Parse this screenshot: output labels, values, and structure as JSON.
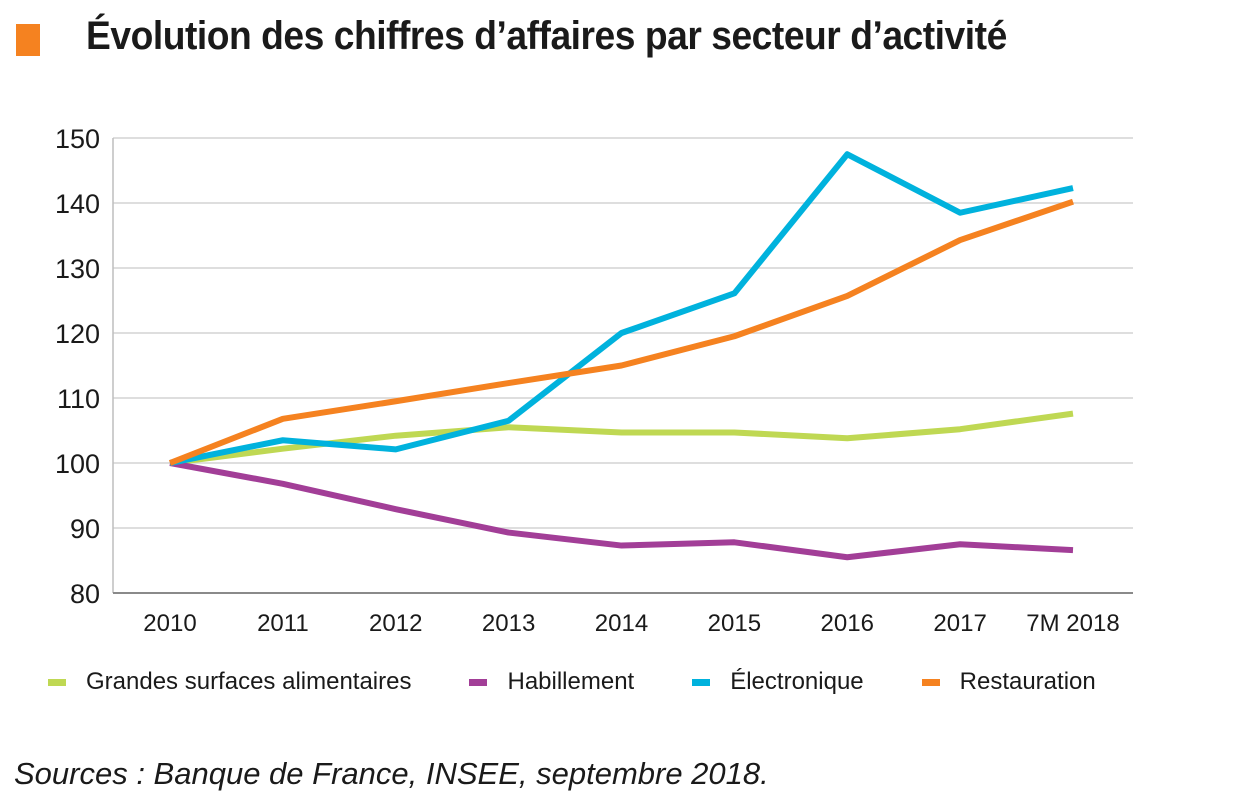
{
  "header": {
    "title": "Évolution des chiffres d’affaires par secteur d’activité",
    "marker_color": "#f58220"
  },
  "chart_data": {
    "type": "line",
    "title": "Évolution des chiffres d’affaires par secteur d’activité",
    "xlabel": "",
    "ylabel": "",
    "categories": [
      "2010",
      "2011",
      "2012",
      "2013",
      "2014",
      "2015",
      "2016",
      "2017",
      "7M 2018"
    ],
    "ylim": [
      80,
      150
    ],
    "yticks": [
      80,
      90,
      100,
      110,
      120,
      130,
      140,
      150
    ],
    "grid": true,
    "legend_position": "bottom",
    "series": [
      {
        "name": "Grandes surfaces alimentaires",
        "color": "#bfd853",
        "values": [
          100,
          102.2,
          104.2,
          105.5,
          104.7,
          104.7,
          103.8,
          105.2,
          107.6
        ]
      },
      {
        "name": "Habillement",
        "color": "#a23e97",
        "values": [
          100,
          96.8,
          92.9,
          89.3,
          87.3,
          87.8,
          85.5,
          87.5,
          86.6
        ]
      },
      {
        "name": "Électronique",
        "color": "#00b2dd",
        "values": [
          100,
          103.5,
          102.1,
          106.5,
          120.0,
          126.1,
          147.5,
          138.5,
          142.3
        ]
      },
      {
        "name": "Restauration",
        "color": "#f58220",
        "values": [
          100,
          106.8,
          109.5,
          112.3,
          115.0,
          119.5,
          125.7,
          134.3,
          140.2
        ]
      }
    ]
  },
  "source": "Sources : Banque de France, INSEE, septembre 2018."
}
